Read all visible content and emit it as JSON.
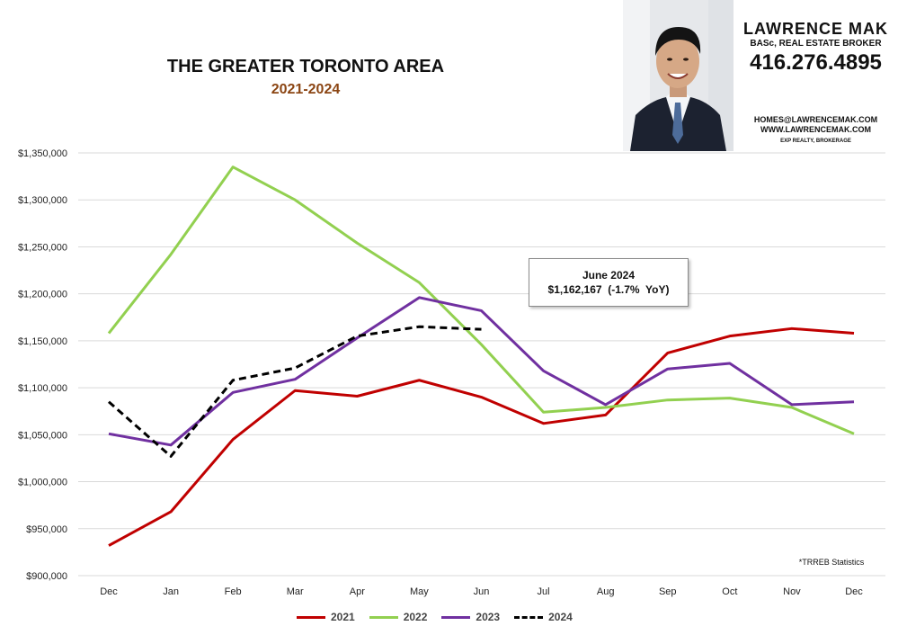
{
  "header": {
    "title": "THE GREATER TORONTO AREA",
    "subtitle": "2021-2024"
  },
  "agent": {
    "name": "LAWRENCE MAK",
    "credentials": "BASc, REAL ESTATE BROKER",
    "phone": "416.276.4895",
    "email": "HOMES@LAWRENCEMAK.COM",
    "website": "WWW.LAWRENCEMAK.COM",
    "brokerage": "EXP REALTY, BROKERAGE"
  },
  "annotation": {
    "line1": "June 2024",
    "line2": "$1,162,167  (-1.7%  YoY)"
  },
  "source_note": "*TRREB Statistics",
  "colors": {
    "series_2021": "#c00000",
    "series_2022": "#92d050",
    "series_2023": "#7030a0",
    "series_2024": "#000000",
    "gridline": "#d9d9d9",
    "subtitle": "#8b4513"
  },
  "chart_data": {
    "type": "line",
    "title": "THE GREATER TORONTO AREA",
    "subtitle": "2021-2024",
    "xlabel": "",
    "ylabel": "",
    "categories": [
      "Dec",
      "Jan",
      "Feb",
      "Mar",
      "Apr",
      "May",
      "Jun",
      "Jul",
      "Aug",
      "Sep",
      "Oct",
      "Nov",
      "Dec"
    ],
    "ylim": [
      900000,
      1350000
    ],
    "y_ticks": [
      900000,
      950000,
      1000000,
      1050000,
      1100000,
      1150000,
      1200000,
      1250000,
      1300000,
      1350000
    ],
    "y_tick_labels": [
      "$900,000",
      "$950,000",
      "$1,000,000",
      "$1,050,000",
      "$1,100,000",
      "$1,150,000",
      "$1,200,000",
      "$1,250,000",
      "$1,300,000",
      "$1,350,000"
    ],
    "grid": true,
    "legend_position": "bottom",
    "series": [
      {
        "name": "2021",
        "color": "#c00000",
        "dashed": false,
        "values": [
          932000,
          968000,
          1045000,
          1097000,
          1091000,
          1108000,
          1090000,
          1062000,
          1071000,
          1137000,
          1155000,
          1163000,
          1158000
        ]
      },
      {
        "name": "2022",
        "color": "#92d050",
        "dashed": false,
        "values": [
          1158000,
          1242000,
          1335000,
          1300000,
          1254000,
          1212000,
          1146000,
          1074000,
          1079000,
          1087000,
          1089000,
          1079000,
          1051000
        ]
      },
      {
        "name": "2023",
        "color": "#7030a0",
        "dashed": false,
        "values": [
          1051000,
          1039000,
          1095000,
          1109000,
          1153000,
          1196000,
          1182000,
          1118000,
          1082000,
          1120000,
          1126000,
          1082000,
          1085000
        ]
      },
      {
        "name": "2024",
        "color": "#000000",
        "dashed": true,
        "values": [
          1085000,
          1027000,
          1108000,
          1121000,
          1155000,
          1165000,
          1162167,
          null,
          null,
          null,
          null,
          null,
          null
        ]
      }
    ]
  }
}
